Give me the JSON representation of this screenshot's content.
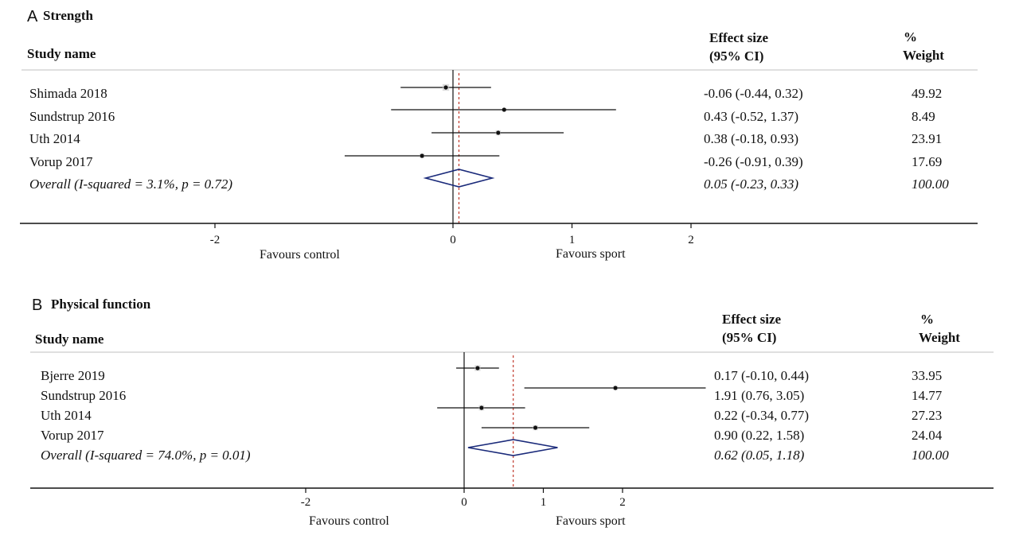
{
  "chart_data": [
    {
      "type": "forest",
      "panel_letter": "A",
      "title": "Strength",
      "header": {
        "study": "Study name",
        "effect_line1": "Effect size",
        "effect_line2": "(95% CI)",
        "weight_line1": "%",
        "weight_line2": "Weight"
      },
      "studies": [
        {
          "name": "Shimada 2018",
          "es": -0.06,
          "lo": -0.44,
          "hi": 0.32,
          "ci_text": "-0.06 (-0.44, 0.32)",
          "weight": "49.92"
        },
        {
          "name": "Sundstrup 2016",
          "es": 0.43,
          "lo": -0.52,
          "hi": 1.37,
          "ci_text": "0.43 (-0.52, 1.37)",
          "weight": "8.49"
        },
        {
          "name": "Uth 2014",
          "es": 0.38,
          "lo": -0.18,
          "hi": 0.93,
          "ci_text": "0.38 (-0.18, 0.93)",
          "weight": "23.91"
        },
        {
          "name": "Vorup 2017",
          "es": -0.26,
          "lo": -0.91,
          "hi": 0.39,
          "ci_text": "-0.26 (-0.91, 0.39)",
          "weight": "17.69"
        }
      ],
      "overall": {
        "label": "Overall  (I-squared = 3.1%, p = 0.72)",
        "es": 0.05,
        "lo": -0.23,
        "hi": 0.33,
        "ci_text": "0.05 (-0.23, 0.33)",
        "weight": "100.00"
      },
      "ticks": [
        -2,
        0,
        1,
        2
      ],
      "tick_labels": [
        "-2",
        "0",
        "1",
        "2"
      ],
      "favours_left": "Favours control",
      "favours_right": "Favours sport",
      "colors": {
        "overall_diamond": "#1a2a7a",
        "overall_line": "#c0392b",
        "text": "#111111"
      }
    },
    {
      "type": "forest",
      "panel_letter": "B",
      "title": "Physical function",
      "header": {
        "study": "Study name",
        "effect_line1": "Effect size",
        "effect_line2": "(95% CI)",
        "weight_line1": "%",
        "weight_line2": "Weight"
      },
      "studies": [
        {
          "name": "Bjerre 2019",
          "es": 0.17,
          "lo": -0.1,
          "hi": 0.44,
          "ci_text": "0.17 (-0.10, 0.44)",
          "weight": "33.95"
        },
        {
          "name": "Sundstrup 2016",
          "es": 1.91,
          "lo": 0.76,
          "hi": 3.05,
          "ci_text": "1.91 (0.76, 3.05)",
          "weight": "14.77"
        },
        {
          "name": "Uth 2014",
          "es": 0.22,
          "lo": -0.34,
          "hi": 0.77,
          "ci_text": "0.22 (-0.34, 0.77)",
          "weight": "27.23"
        },
        {
          "name": "Vorup 2017",
          "es": 0.9,
          "lo": 0.22,
          "hi": 1.58,
          "ci_text": "0.90 (0.22, 1.58)",
          "weight": "24.04"
        }
      ],
      "overall": {
        "label": "Overall  (I-squared = 74.0%, p = 0.01)",
        "es": 0.62,
        "lo": 0.05,
        "hi": 1.18,
        "ci_text": "0.62 (0.05, 1.18)",
        "weight": "100.00"
      },
      "ticks": [
        -2,
        0,
        1,
        2
      ],
      "tick_labels": [
        "-2",
        "0",
        "1",
        "2"
      ],
      "favours_left": "Favours control",
      "favours_right": "Favours sport",
      "colors": {
        "overall_diamond": "#1a2a7a",
        "overall_line": "#c0392b",
        "text": "#111111"
      }
    }
  ]
}
